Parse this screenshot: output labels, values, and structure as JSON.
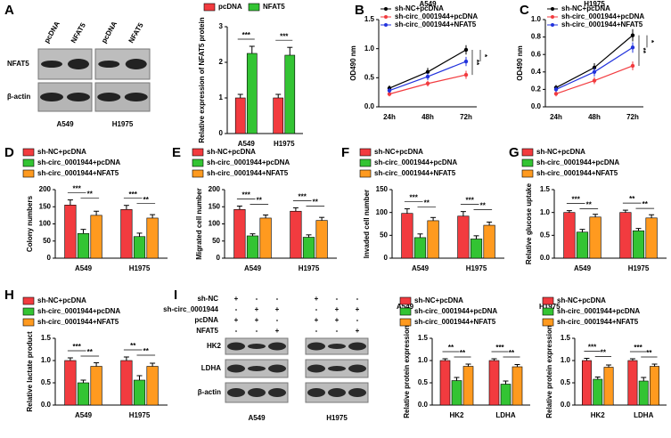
{
  "panel_labels": [
    "A",
    "B",
    "C",
    "D",
    "E",
    "F",
    "G",
    "H",
    "I"
  ],
  "blot_A": {
    "columns": [
      "pcDNA",
      "NFAT5",
      "pcDNA",
      "NFAT5"
    ],
    "rows": [
      "NFAT5",
      "β-actin"
    ],
    "cells": [
      "A549",
      "H1975"
    ]
  },
  "blot_I": {
    "conditions": [
      {
        "name": "sh-NC",
        "marks": [
          "+",
          "-",
          "-",
          "+",
          "-",
          "-"
        ]
      },
      {
        "name": "sh-circ_0001944",
        "marks": [
          "-",
          "+",
          "+",
          "-",
          "+",
          "+"
        ]
      },
      {
        "name": "pcDNA",
        "marks": [
          "+",
          "+",
          "-",
          "+",
          "+",
          "-"
        ]
      },
      {
        "name": "NFAT5",
        "marks": [
          "-",
          "-",
          "+",
          "-",
          "-",
          "+"
        ]
      }
    ],
    "rows": [
      "HK2",
      "LDHA",
      "β-actin"
    ],
    "cells": [
      "A549",
      "H1975"
    ]
  },
  "chart_data": [
    {
      "type": "bar",
      "ylabel": "Relative expression of NFAT5 protein",
      "categories": [
        "A549",
        "H1975"
      ],
      "series": [
        {
          "name": "pcDNA",
          "color": "#f23b3f",
          "values": [
            1,
            1
          ],
          "errors": [
            0.1,
            0.1
          ]
        },
        {
          "name": "NFAT5",
          "color": "#33c433",
          "values": [
            2.25,
            2.2
          ],
          "errors": [
            0.2,
            0.22
          ]
        }
      ],
      "ylim": [
        0,
        3
      ],
      "yticks": [
        0,
        1,
        2,
        3
      ],
      "annotations": [
        [
          "***"
        ],
        [
          "***"
        ]
      ]
    },
    {
      "type": "line",
      "title": "A549",
      "ylabel": "OD490 nm",
      "x": [
        "24h",
        "48h",
        "72h"
      ],
      "series": [
        {
          "name": "sh-NC+pcDNA",
          "color": "#000000",
          "values": [
            0.32,
            0.6,
            0.98
          ],
          "errors": [
            0.05,
            0.07,
            0.08
          ]
        },
        {
          "name": "sh-circ_0001944+pcDNA",
          "color": "#f23b3f",
          "values": [
            0.22,
            0.4,
            0.55
          ],
          "errors": [
            0.04,
            0.05,
            0.07
          ]
        },
        {
          "name": "sh-circ_0001944+NFAT5",
          "color": "#2233dd",
          "values": [
            0.28,
            0.52,
            0.78
          ],
          "errors": [
            0.04,
            0.06,
            0.08
          ]
        }
      ],
      "ylim": [
        0,
        1.5
      ],
      "yticks": [
        {
          "value": 0,
          "label": "0.0"
        },
        0.5,
        {
          "value": 1,
          "label": "1.0"
        },
        1.5
      ],
      "annotations": [
        "**",
        "*"
      ]
    },
    {
      "type": "line",
      "title": "H1975",
      "ylabel": "OD490 nm",
      "x": [
        "24h",
        "48h",
        "72h"
      ],
      "series": [
        {
          "name": "sh-NC+pcDNA",
          "color": "#000000",
          "values": [
            0.22,
            0.45,
            0.82
          ],
          "errors": [
            0.03,
            0.05,
            0.07
          ]
        },
        {
          "name": "sh-circ_0001944+pcDNA",
          "color": "#f23b3f",
          "values": [
            0.15,
            0.3,
            0.47
          ],
          "errors": [
            0.03,
            0.04,
            0.05
          ]
        },
        {
          "name": "sh-circ_0001944+NFAT5",
          "color": "#2233dd",
          "values": [
            0.2,
            0.4,
            0.68
          ],
          "errors": [
            0.03,
            0.05,
            0.06
          ]
        }
      ],
      "ylim": [
        0,
        1
      ],
      "yticks": [
        {
          "value": 0,
          "label": "0.0"
        },
        0.2,
        0.4,
        0.6,
        0.8,
        {
          "value": 1,
          "label": "1.0"
        }
      ],
      "annotations": [
        "**",
        "*"
      ]
    },
    {
      "type": "bar",
      "ylabel": "Colony numbers",
      "categories": [
        "A549",
        "H1975"
      ],
      "series": [
        {
          "name": "sh-NC+pcDNA",
          "color": "#f23b3f",
          "values": [
            155,
            142
          ],
          "errors": [
            15,
            12
          ]
        },
        {
          "name": "sh-circ_0001944+pcDNA",
          "color": "#33c433",
          "values": [
            72,
            63
          ],
          "errors": [
            12,
            10
          ]
        },
        {
          "name": "sh-circ_0001944+NFAT5",
          "color": "#ff9a1f",
          "values": [
            125,
            117
          ],
          "errors": [
            12,
            10
          ]
        }
      ],
      "ylim": [
        0,
        200
      ],
      "yticks": [
        0,
        50,
        100,
        150,
        200
      ],
      "annotations": [
        [
          "***",
          "**"
        ],
        [
          "***",
          "**"
        ]
      ]
    },
    {
      "type": "bar",
      "ylabel": "Migrated cell number",
      "categories": [
        "A549",
        "H1975"
      ],
      "series": [
        {
          "name": "sh-NC+pcDNA",
          "color": "#f23b3f",
          "values": [
            142,
            137
          ],
          "errors": [
            10,
            10
          ]
        },
        {
          "name": "sh-circ_0001944+pcDNA",
          "color": "#33c433",
          "values": [
            65,
            61
          ],
          "errors": [
            6,
            7
          ]
        },
        {
          "name": "sh-circ_0001944+NFAT5",
          "color": "#ff9a1f",
          "values": [
            117,
            110
          ],
          "errors": [
            9,
            9
          ]
        }
      ],
      "ylim": [
        0,
        200
      ],
      "yticks": [
        0,
        50,
        100,
        150,
        200
      ],
      "annotations": [
        [
          "***",
          "**"
        ],
        [
          "***",
          "**"
        ]
      ]
    },
    {
      "type": "bar",
      "ylabel": "Invaded cell number",
      "categories": [
        "A549",
        "H1975"
      ],
      "series": [
        {
          "name": "sh-NC+pcDNA",
          "color": "#f23b3f",
          "values": [
            98,
            92
          ],
          "errors": [
            10,
            10
          ]
        },
        {
          "name": "sh-circ_0001944+pcDNA",
          "color": "#33c433",
          "values": [
            45,
            42
          ],
          "errors": [
            8,
            7
          ]
        },
        {
          "name": "sh-circ_0001944+NFAT5",
          "color": "#ff9a1f",
          "values": [
            82,
            72
          ],
          "errors": [
            7,
            7
          ]
        }
      ],
      "ylim": [
        0,
        150
      ],
      "yticks": [
        0,
        50,
        100,
        150
      ],
      "annotations": [
        [
          "***",
          "**"
        ],
        [
          "***",
          "**"
        ]
      ]
    },
    {
      "type": "bar",
      "ylabel": "Relative glucose uptake",
      "categories": [
        "A549",
        "H1975"
      ],
      "series": [
        {
          "name": "sh-NC+pcDNA",
          "color": "#f23b3f",
          "values": [
            1,
            1
          ],
          "errors": [
            0.04,
            0.05
          ]
        },
        {
          "name": "sh-circ_0001944+pcDNA",
          "color": "#33c433",
          "values": [
            0.57,
            0.6
          ],
          "errors": [
            0.06,
            0.05
          ]
        },
        {
          "name": "sh-circ_0001944+NFAT5",
          "color": "#ff9a1f",
          "values": [
            0.9,
            0.88
          ],
          "errors": [
            0.06,
            0.07
          ]
        }
      ],
      "ylim": [
        0,
        1.5
      ],
      "yticks": [
        {
          "value": 0,
          "label": "0.0"
        },
        0.5,
        {
          "value": 1,
          "label": "1.0"
        },
        1.5
      ],
      "annotations": [
        [
          "***",
          "**"
        ],
        [
          "**",
          "**"
        ]
      ]
    },
    {
      "type": "bar",
      "ylabel": "Relative lactate product",
      "categories": [
        "A549",
        "H1975"
      ],
      "series": [
        {
          "name": "sh-NC+pcDNA",
          "color": "#f23b3f",
          "values": [
            1,
            1
          ],
          "errors": [
            0.06,
            0.08
          ]
        },
        {
          "name": "sh-circ_0001944+pcDNA",
          "color": "#33c433",
          "values": [
            0.5,
            0.56
          ],
          "errors": [
            0.06,
            0.1
          ]
        },
        {
          "name": "sh-circ_0001944+NFAT5",
          "color": "#ff9a1f",
          "values": [
            0.87,
            0.87
          ],
          "errors": [
            0.08,
            0.07
          ]
        }
      ],
      "ylim": [
        0,
        1.5
      ],
      "yticks": [
        {
          "value": 0,
          "label": "0.0"
        },
        0.5,
        {
          "value": 1,
          "label": "1.0"
        },
        1.5
      ],
      "annotations": [
        [
          "***",
          "**"
        ],
        [
          "**",
          "**"
        ]
      ]
    },
    {
      "type": "bar",
      "title": "A549",
      "ylabel": "Relative protein expression",
      "categories": [
        "HK2",
        "LDHA"
      ],
      "series": [
        {
          "name": "sh-NC+pcDNA",
          "color": "#f23b3f",
          "values": [
            1,
            1
          ],
          "errors": [
            0.04,
            0.04
          ]
        },
        {
          "name": "sh-circ_0001944+pcDNA",
          "color": "#33c433",
          "values": [
            0.55,
            0.47
          ],
          "errors": [
            0.07,
            0.07
          ]
        },
        {
          "name": "sh-circ_0001944+NFAT5",
          "color": "#ff9a1f",
          "values": [
            0.87,
            0.86
          ],
          "errors": [
            0.05,
            0.05
          ]
        }
      ],
      "ylim": [
        0,
        1.5
      ],
      "yticks": [
        {
          "value": 0,
          "label": "0.0"
        },
        0.5,
        {
          "value": 1,
          "label": "1.0"
        },
        1.5
      ],
      "annotations": [
        [
          "**",
          "**"
        ],
        [
          "***",
          "**"
        ]
      ]
    },
    {
      "type": "bar",
      "title": "H1975",
      "ylabel": "Relative protein expression",
      "categories": [
        "HK2",
        "LDHA"
      ],
      "series": [
        {
          "name": "sh-NC+pcDNA",
          "color": "#f23b3f",
          "values": [
            1,
            1
          ],
          "errors": [
            0.05,
            0.04
          ]
        },
        {
          "name": "sh-circ_0001944+pcDNA",
          "color": "#33c433",
          "values": [
            0.58,
            0.54
          ],
          "errors": [
            0.05,
            0.08
          ]
        },
        {
          "name": "sh-circ_0001944+NFAT5",
          "color": "#ff9a1f",
          "values": [
            0.85,
            0.87
          ],
          "errors": [
            0.05,
            0.05
          ]
        }
      ],
      "ylim": [
        0,
        1.5
      ],
      "yticks": [
        {
          "value": 0,
          "label": "0.0"
        },
        0.5,
        {
          "value": 1,
          "label": "1.0"
        },
        1.5
      ],
      "annotations": [
        [
          "***",
          "**"
        ],
        [
          "***",
          "**"
        ]
      ]
    }
  ]
}
